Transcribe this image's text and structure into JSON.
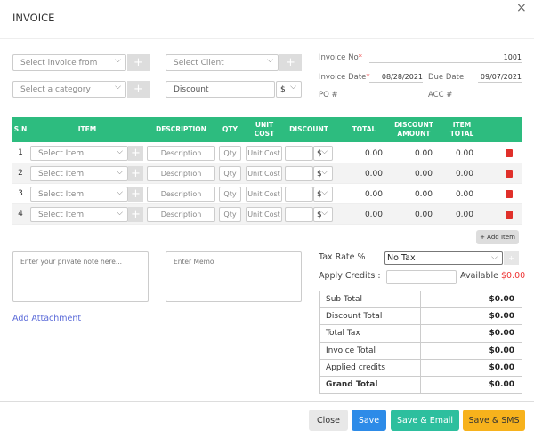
{
  "header": {
    "title": "INVOICE",
    "close": "×"
  },
  "selectors": {
    "invoice_from": "Select invoice from",
    "client": "Select Client",
    "category": "Select a category",
    "discount": "Discount",
    "discount_unit": "$"
  },
  "meta": {
    "required_mark": "*",
    "invoice_no": {
      "label": "Invoice No",
      "value": "1001"
    },
    "invoice_date": {
      "label": "Invoice Date",
      "value": "08/28/2021"
    },
    "due_date": {
      "label": "Due Date",
      "value": "09/07/2021"
    },
    "po": {
      "label": "PO #"
    },
    "acc": {
      "label": "ACC #"
    }
  },
  "table": {
    "columns": [
      "S.N",
      "ITEM",
      "DESCRIPTION",
      "QTY",
      "UNIT COST",
      "DISCOUNT",
      "TOTAL",
      "DISCOUNT AMOUNT",
      "ITEM TOTAL"
    ],
    "rows": [
      {
        "sn": "1",
        "item": "Select Item",
        "description": "Description",
        "qty": "Qty",
        "unit_cost": "Unit Cost",
        "discount_unit": "$",
        "total": "0.00",
        "discount_amount": "0.00",
        "item_total": "0.00"
      },
      {
        "sn": "2",
        "item": "Select Item",
        "description": "Description",
        "qty": "Qty",
        "unit_cost": "Unit Cost",
        "discount_unit": "$",
        "total": "0.00",
        "discount_amount": "0.00",
        "item_total": "0.00"
      },
      {
        "sn": "3",
        "item": "Select Item",
        "description": "Description",
        "qty": "Qty",
        "unit_cost": "Unit Cost",
        "discount_unit": "$",
        "total": "0.00",
        "discount_amount": "0.00",
        "item_total": "0.00"
      },
      {
        "sn": "4",
        "item": "Select Item",
        "description": "Description",
        "qty": "Qty",
        "unit_cost": "Unit Cost",
        "discount_unit": "$",
        "total": "0.00",
        "discount_amount": "0.00",
        "item_total": "0.00"
      }
    ],
    "add_item": "+ Add Item"
  },
  "notes": {
    "private": "Enter your private note here...",
    "memo": "Enter Memo",
    "attachment": "Add Attachment"
  },
  "tax": {
    "label": "Tax Rate %",
    "value": "No Tax",
    "credits_label": "Apply Credits :",
    "available_label": "Available",
    "available_value": "$0.00"
  },
  "totals": [
    [
      "Sub Total",
      "$0.00"
    ],
    [
      "Discount Total",
      "$0.00"
    ],
    [
      "Total Tax",
      "$0.00"
    ],
    [
      "Invoice Total",
      "$0.00"
    ],
    [
      "Applied credits",
      "$0.00"
    ],
    [
      "Grand Total",
      "$0.00"
    ]
  ],
  "buttons": {
    "close": "Close",
    "save": "Save",
    "save_email": "Save & Email",
    "save_sms": "Save & SMS"
  }
}
